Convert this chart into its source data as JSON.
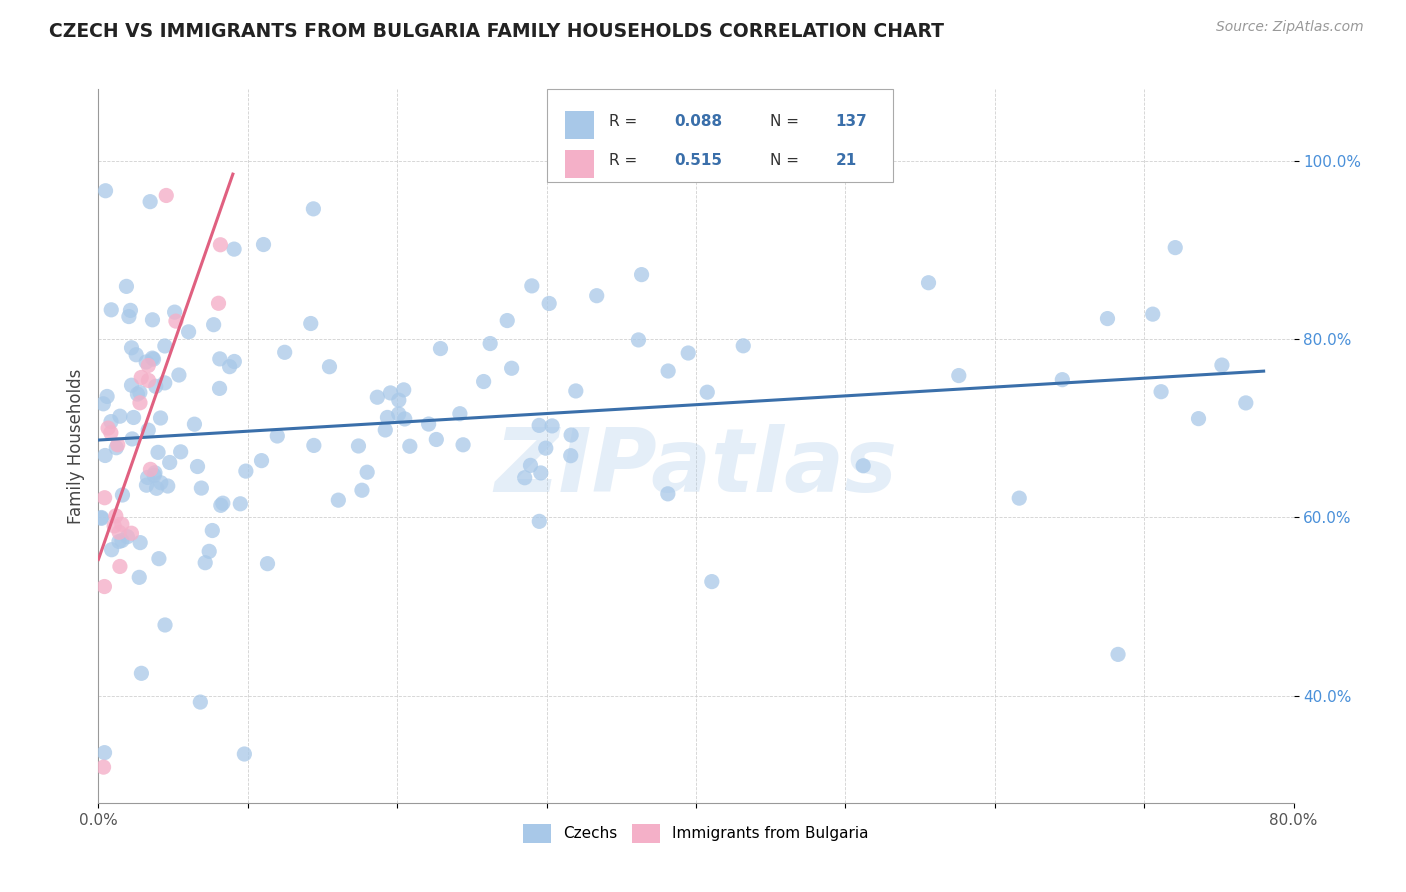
{
  "title": "CZECH VS IMMIGRANTS FROM BULGARIA FAMILY HOUSEHOLDS CORRELATION CHART",
  "source": "Source: ZipAtlas.com",
  "ylabel": "Family Households",
  "xlim": [
    0.0,
    0.8
  ],
  "ylim": [
    0.28,
    1.08
  ],
  "blue_color": "#a8c8e8",
  "pink_color": "#f4b0c8",
  "blue_line_color": "#3a6faa",
  "pink_line_color": "#e06080",
  "watermark": "ZIPatlas",
  "r_blue": 0.088,
  "n_blue": 137,
  "r_pink": 0.515,
  "n_pink": 21,
  "ytick_positions": [
    0.4,
    0.6,
    0.8,
    1.0
  ],
  "ytick_labels": [
    "40.0%",
    "60.0%",
    "80.0%",
    "100.0%"
  ],
  "xtick_positions": [
    0.0,
    0.1,
    0.2,
    0.3,
    0.4,
    0.5,
    0.6,
    0.7,
    0.8
  ],
  "xtick_labels": [
    "0.0%",
    "",
    "",
    "",
    "",
    "",
    "",
    "",
    "80.0%"
  ]
}
